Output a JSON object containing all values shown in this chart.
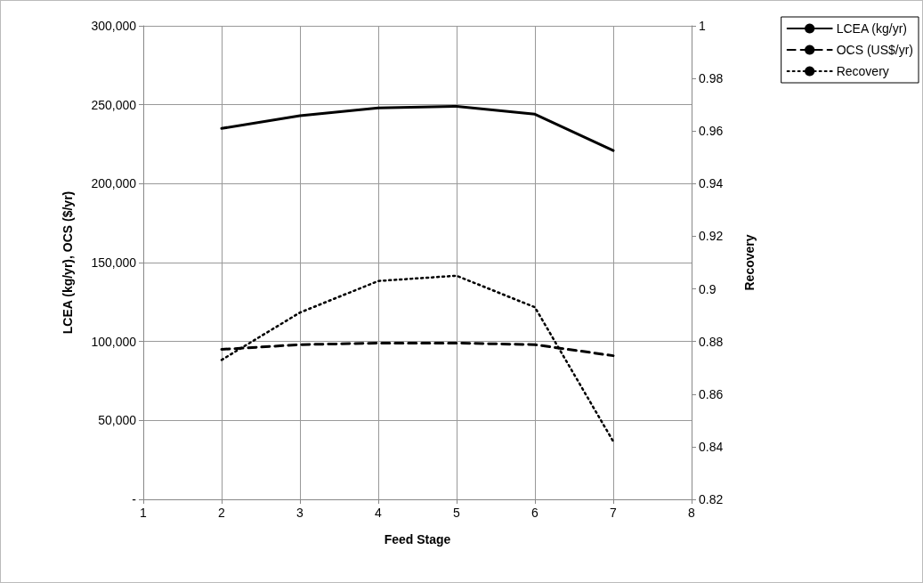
{
  "chart_data": {
    "type": "line",
    "xlabel": "Feed Stage",
    "ylabel": "LCEA (kg/yr), OCS ($/yr)",
    "y2label": "Recovery",
    "x": [
      2,
      3,
      4,
      5,
      6,
      7
    ],
    "series": [
      {
        "name": "LCEA (kg/yr)",
        "color": "#000000",
        "line_style": "solid",
        "values": [
          235000,
          243000,
          248000,
          249000,
          244000,
          221000
        ]
      },
      {
        "name": "OCS (US$/yr)",
        "color": "#000000",
        "line_style": "dashed",
        "values": [
          95000,
          98000,
          99000,
          99000,
          98000,
          91000
        ]
      },
      {
        "name": "Recovery",
        "color": "#000000",
        "line_style": "dotted",
        "axis": "y2",
        "values": [
          0.873,
          0.891,
          0.903,
          0.905,
          0.893,
          0.842
        ]
      }
    ],
    "xlim": [
      1,
      8
    ],
    "xticks": [
      1,
      2,
      3,
      4,
      5,
      6,
      7,
      8
    ],
    "ylim": [
      0,
      300000
    ],
    "yticks": [
      {
        "value": 0,
        "label": "-"
      },
      {
        "value": 50000,
        "label": "50,000"
      },
      {
        "value": 100000,
        "label": "100,000"
      },
      {
        "value": 150000,
        "label": "150,000"
      },
      {
        "value": 200000,
        "label": "200,000"
      },
      {
        "value": 250000,
        "label": "250,000"
      },
      {
        "value": 300000,
        "label": "300,000"
      }
    ],
    "y2lim": [
      0.82,
      1
    ],
    "y2ticks": [
      0.82,
      0.84,
      0.86,
      0.88,
      0.9,
      0.92,
      0.94,
      0.96,
      0.98,
      1
    ],
    "grid": true,
    "legend": "top right",
    "marker": "none"
  }
}
